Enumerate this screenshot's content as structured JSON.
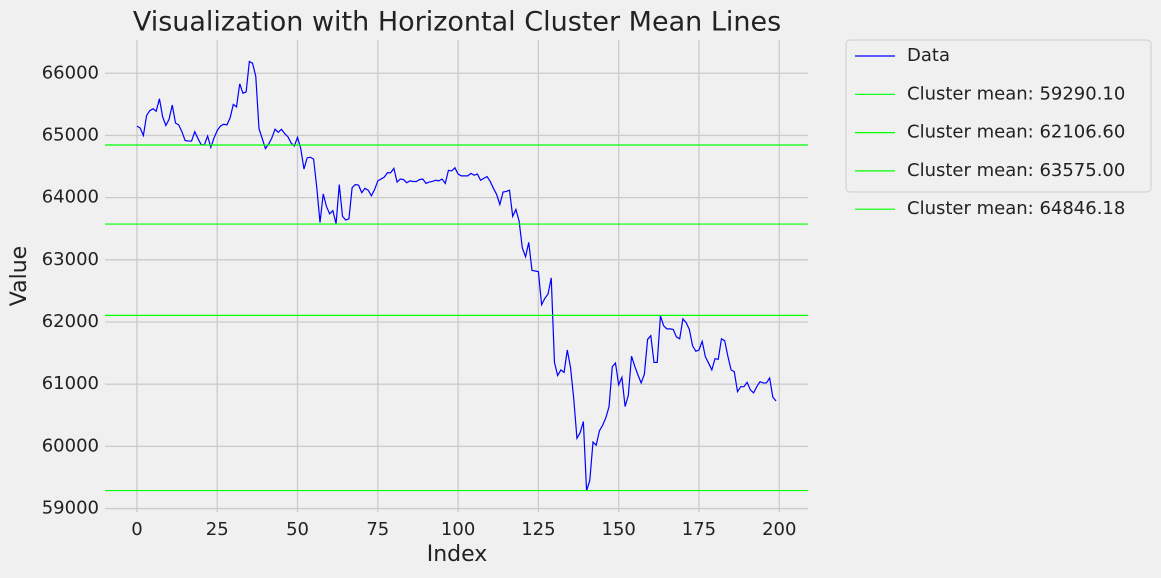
{
  "chart_data": {
    "type": "line",
    "title": "Visualization with Horizontal Cluster Mean Lines",
    "xlabel": "Index",
    "ylabel": "Value",
    "series": [
      {
        "name": "Data",
        "color": "#0000ff",
        "values": [
          65150,
          65120,
          65000,
          65320,
          65400,
          65430,
          65390,
          65590,
          65300,
          65160,
          65260,
          65490,
          65200,
          65170,
          65060,
          64920,
          64910,
          64910,
          65060,
          64950,
          64850,
          64850,
          64990,
          64810,
          64960,
          65080,
          65150,
          65180,
          65170,
          65280,
          65500,
          65460,
          65830,
          65680,
          65700,
          66190,
          66160,
          65950,
          65110,
          64950,
          64790,
          64860,
          64960,
          65100,
          65050,
          65100,
          65030,
          64980,
          64880,
          64830,
          64970,
          64790,
          64460,
          64640,
          64650,
          64620,
          64160,
          63600,
          64060,
          63860,
          63740,
          63790,
          63580,
          64210,
          63700,
          63640,
          63660,
          64160,
          64210,
          64200,
          64080,
          64150,
          64120,
          64030,
          64130,
          64270,
          64300,
          64330,
          64400,
          64400,
          64470,
          64250,
          64300,
          64290,
          64240,
          64270,
          64260,
          64260,
          64290,
          64300,
          64230,
          64250,
          64260,
          64280,
          64270,
          64300,
          64230,
          64440,
          64430,
          64480,
          64380,
          64350,
          64350,
          64350,
          64390,
          64360,
          64380,
          64280,
          64310,
          64340,
          64260,
          64150,
          64050,
          63890,
          64090,
          64100,
          64120,
          63700,
          63810,
          63620,
          63190,
          63050,
          63280,
          62830,
          62820,
          62810,
          62280,
          62380,
          62450,
          62710,
          61350,
          61140,
          61230,
          61190,
          61550,
          61270,
          60770,
          60130,
          60220,
          60400,
          59290,
          59450,
          60070,
          60020,
          60250,
          60340,
          60460,
          60640,
          61280,
          61340,
          60990,
          61110,
          60640,
          60820,
          61450,
          61290,
          61150,
          61020,
          61160,
          61720,
          61780,
          61350,
          61350,
          62100,
          61940,
          61890,
          61890,
          61880,
          61760,
          61730,
          62050,
          61990,
          61880,
          61620,
          61530,
          61550,
          61690,
          61440,
          61340,
          61230,
          61410,
          61400,
          61730,
          61700,
          61450,
          61230,
          61200,
          60880,
          60960,
          60960,
          61030,
          60910,
          60860,
          60960,
          61040,
          61020,
          61020,
          61100,
          60790,
          60730
        ]
      }
    ],
    "hlines": [
      {
        "label": "Cluster mean: 59290.10",
        "value": 59290.1,
        "color": "#00ff00"
      },
      {
        "label": "Cluster mean: 62106.60",
        "value": 62106.6,
        "color": "#00ff00"
      },
      {
        "label": "Cluster mean: 63575.00",
        "value": 63575.0,
        "color": "#00ff00"
      },
      {
        "label": "Cluster mean: 64846.18",
        "value": 64846.18,
        "color": "#00ff00"
      }
    ],
    "xlim": [
      -9.95,
      208.95
    ],
    "xticks": [
      0,
      25,
      50,
      75,
      100,
      125,
      150,
      175,
      200
    ],
    "ylim": [
      58945,
      66535
    ],
    "yticks": [
      59000,
      60000,
      61000,
      62000,
      63000,
      64000,
      65000,
      66000
    ],
    "grid": true,
    "legend": "outside-upper-right"
  }
}
